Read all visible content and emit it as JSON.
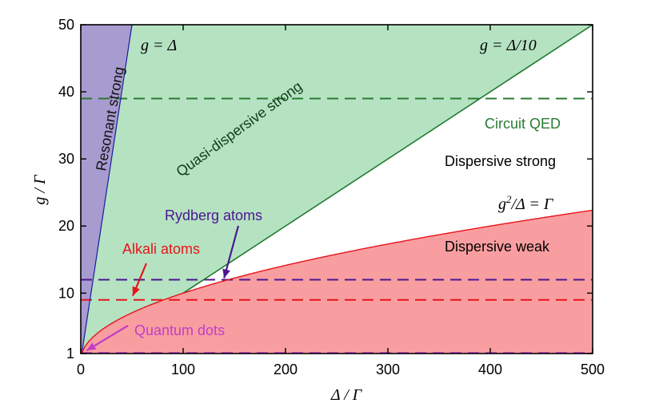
{
  "chart_data": {
    "type": "area",
    "title": "",
    "xlabel": "Δ / Γ",
    "ylabel": "g / Γ",
    "xlim": [
      0,
      500
    ],
    "ylim": [
      1,
      50
    ],
    "xticks": [
      0,
      100,
      200,
      300,
      400,
      500
    ],
    "yticks": [
      1,
      10,
      20,
      30,
      40,
      50
    ],
    "regions": [
      {
        "name": "Resonant strong",
        "boundary": "g = Δ",
        "color": "#a89bd0"
      },
      {
        "name": "Quasi-dispersive strong",
        "boundary": "g = Δ/10",
        "color": "#b5e3c2"
      },
      {
        "name": "Dispersive strong",
        "color": "#ffffff"
      },
      {
        "name": "Dispersive weak",
        "boundary": "g²/Δ = Γ",
        "color": "#f99ea0"
      }
    ],
    "curves": [
      {
        "name": "g = Δ",
        "x": [
          1,
          50
        ],
        "y": [
          1,
          50
        ],
        "color": "#1a1aa0"
      },
      {
        "name": "g = Δ/10",
        "x": [
          10,
          500
        ],
        "y": [
          1,
          50
        ],
        "color": "#1f7a2e"
      },
      {
        "name": "g²/Δ = Γ",
        "x": [
          1,
          4,
          9,
          16,
          25,
          36,
          49,
          64,
          81,
          100,
          150,
          200,
          250,
          300,
          350,
          400,
          450,
          500
        ],
        "y": [
          1,
          2,
          3,
          4,
          5,
          6,
          7,
          8,
          9,
          10,
          12.25,
          14.14,
          15.81,
          17.32,
          18.71,
          20,
          21.21,
          22.36
        ],
        "color": "#e8141c"
      }
    ],
    "reference_lines": [
      {
        "name": "Circuit QED",
        "y": 39,
        "color": "#2a7a32",
        "style": "dashed"
      },
      {
        "name": "Rydberg atoms",
        "y": 12,
        "color": "#4b1690",
        "style": "dashed",
        "point": [
          140,
          12
        ]
      },
      {
        "name": "Alkali atoms",
        "y": 9,
        "color": "#e8141c",
        "style": "dashed",
        "point": [
          50,
          9
        ]
      },
      {
        "name": "Quantum dots",
        "y": 1.1,
        "color": "#c13ec6",
        "style": "dashed",
        "point": [
          5,
          1.1
        ]
      }
    ],
    "annotations": {
      "resonant": "Resonant strong",
      "quasi": "Quasi-dispersive strong",
      "g_eq_delta": "g = Δ",
      "g_eq_delta10": "g = Δ/10",
      "circuit_qed": "Circuit QED",
      "dispersive_strong": "Dispersive strong",
      "g2_pre": "g",
      "g2_sup": "2",
      "g2_post": "/Δ = Γ",
      "dispersive_weak": "Dispersive weak",
      "rydberg": "Rydberg atoms",
      "alkali": "Alkali atoms",
      "quantum_dots": "Quantum dots"
    }
  },
  "colors": {
    "resonant_fill": "#a89bd0",
    "quasi_fill": "#b5e3c2",
    "weak_fill": "#f99ea0",
    "circuit": "#2a7a32",
    "rydberg": "#4b1690",
    "alkali": "#e8141c",
    "qdots": "#c13ec6",
    "quasi_label": "#1f6e2a"
  }
}
